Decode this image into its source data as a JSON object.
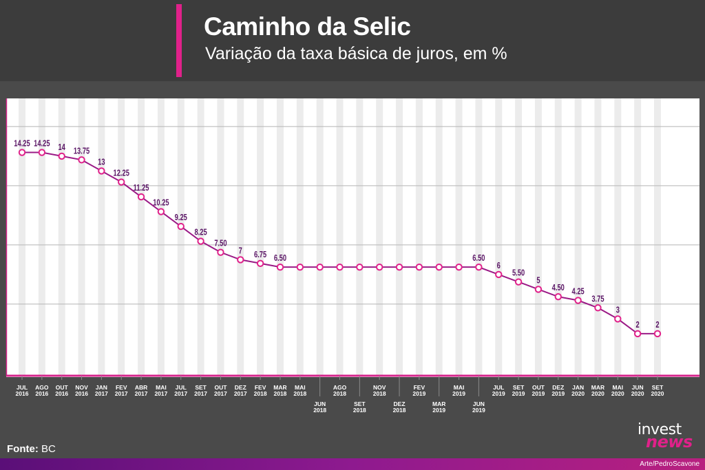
{
  "header": {
    "title": "Caminho da Selic",
    "subtitle": "Variação da taxa básica de juros, em %"
  },
  "source": {
    "label": "Fonte:",
    "value": "BC"
  },
  "logo": {
    "invest": "invest",
    "news": "news"
  },
  "credit": "Arte/PedroScavone",
  "colors": {
    "accent": "#e0218a",
    "line": "#9b1a86",
    "label": "#5a1565",
    "axis": "#d6248c",
    "header_bg": "#3c3c3c",
    "body_bg": "#4a4a4a"
  },
  "chart_data": {
    "type": "line",
    "series": [
      {
        "points": [
          {
            "cat": [
              "JUL",
              "2016"
            ],
            "value": 14.25,
            "label": "14.25"
          },
          {
            "cat": [
              "AGO",
              "2016"
            ],
            "value": 14.25,
            "label": "14.25"
          },
          {
            "cat": [
              "OUT",
              "2016"
            ],
            "value": 14,
            "label": "14"
          },
          {
            "cat": [
              "NOV",
              "2016"
            ],
            "value": 13.75,
            "label": "13.75"
          },
          {
            "cat": [
              "JAN",
              "2017"
            ],
            "value": 13,
            "label": "13"
          },
          {
            "cat": [
              "FEV",
              "2017"
            ],
            "value": 12.25,
            "label": "12.25"
          },
          {
            "cat": [
              "ABR",
              "2017"
            ],
            "value": 11.25,
            "label": "11.25"
          },
          {
            "cat": [
              "MAI",
              "2017"
            ],
            "value": 10.25,
            "label": "10.25"
          },
          {
            "cat": [
              "JUL",
              "2017"
            ],
            "value": 9.25,
            "label": "9.25"
          },
          {
            "cat": [
              "SET",
              "2017"
            ],
            "value": 8.25,
            "label": "8.25"
          },
          {
            "cat": [
              "OUT",
              "2017"
            ],
            "value": 7.5,
            "label": "7.50"
          },
          {
            "cat": [
              "DEZ",
              "2017"
            ],
            "value": 7,
            "label": "7"
          },
          {
            "cat": [
              "FEV",
              "2018"
            ],
            "value": 6.75,
            "label": "6.75"
          },
          {
            "cat": [
              "MAR",
              "2018"
            ],
            "value": 6.5,
            "label": "6.50"
          },
          {
            "cat": [
              "MAI",
              "2018"
            ],
            "value": 6.5,
            "label": ""
          },
          {
            "cat": [
              "JUN",
              "2018"
            ],
            "value": 6.5,
            "label": "",
            "low": true
          },
          {
            "cat": [
              "AGO",
              "2018"
            ],
            "value": 6.5,
            "label": ""
          },
          {
            "cat": [
              "SET",
              "2018"
            ],
            "value": 6.5,
            "label": "",
            "low": true
          },
          {
            "cat": [
              "NOV",
              "2018"
            ],
            "value": 6.5,
            "label": ""
          },
          {
            "cat": [
              "DEZ",
              "2018"
            ],
            "value": 6.5,
            "label": "",
            "low": true
          },
          {
            "cat": [
              "FEV",
              "2019"
            ],
            "value": 6.5,
            "label": ""
          },
          {
            "cat": [
              "MAR",
              "2019"
            ],
            "value": 6.5,
            "label": "",
            "low": true
          },
          {
            "cat": [
              "MAI",
              "2019"
            ],
            "value": 6.5,
            "label": ""
          },
          {
            "cat": [
              "JUN",
              "2019"
            ],
            "value": 6.5,
            "label": "6.50",
            "low": true
          },
          {
            "cat": [
              "JUL",
              "2019"
            ],
            "value": 6,
            "label": "6"
          },
          {
            "cat": [
              "SET",
              "2019"
            ],
            "value": 5.5,
            "label": "5.50"
          },
          {
            "cat": [
              "OUT",
              "2019"
            ],
            "value": 5,
            "label": "5"
          },
          {
            "cat": [
              "DEZ",
              "2019"
            ],
            "value": 4.5,
            "label": "4.50"
          },
          {
            "cat": [
              "JAN",
              "2020"
            ],
            "value": 4.25,
            "label": "4.25"
          },
          {
            "cat": [
              "MAR",
              "2020"
            ],
            "value": 3.75,
            "label": "3.75"
          },
          {
            "cat": [
              "MAI",
              "2020"
            ],
            "value": 3,
            "label": "3"
          },
          {
            "cat": [
              "JUN",
              "2020"
            ],
            "value": 2,
            "label": "2"
          },
          {
            "cat": [
              "SET",
              "2020"
            ],
            "value": 2,
            "label": "2"
          }
        ]
      }
    ],
    "ylim": [
      0,
      16
    ],
    "grid": "horizontal lines and vertical stripes",
    "legend": "none"
  }
}
